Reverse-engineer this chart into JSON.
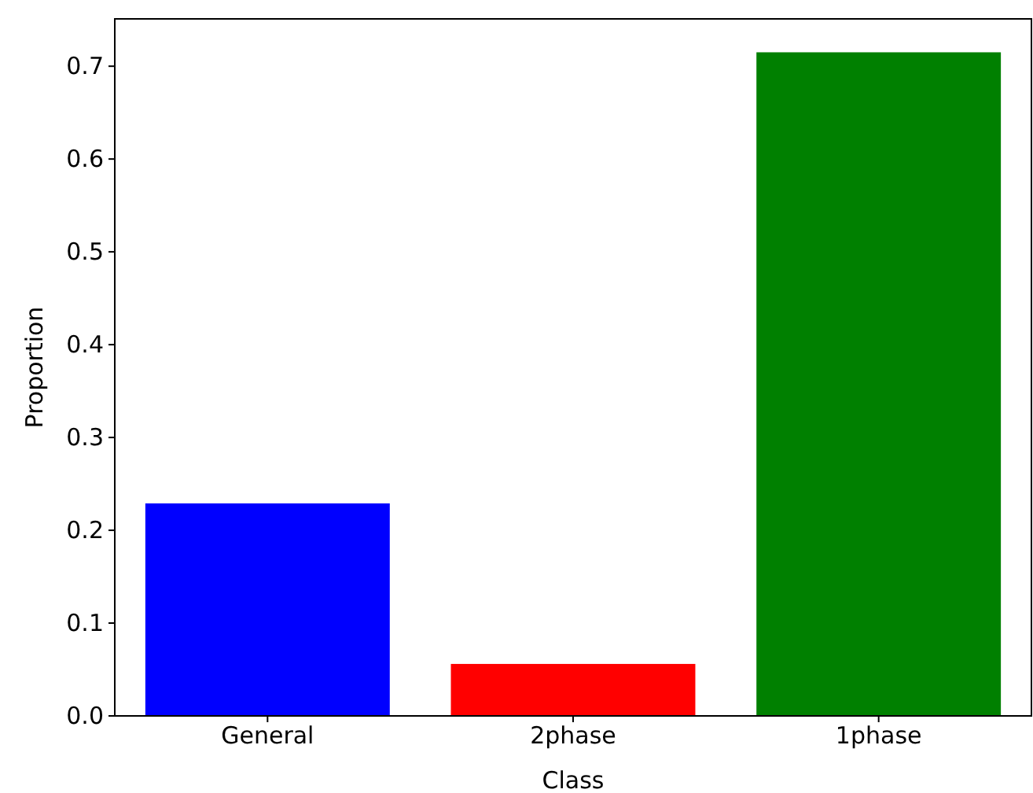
{
  "chart_data": {
    "type": "bar",
    "xlabel": "Class",
    "ylabel": "Proportion",
    "categories": [
      "General",
      "2phase",
      "1phase"
    ],
    "values": [
      0.229,
      0.056,
      0.715
    ],
    "colors": [
      "#0000ff",
      "#ff0000",
      "#008000"
    ],
    "ylim": [
      0,
      0.751
    ],
    "yticks": [
      {
        "value": 0,
        "label": "0.0"
      },
      0.1,
      0.2,
      0.3,
      0.4,
      0.5,
      0.6,
      0.7
    ]
  }
}
